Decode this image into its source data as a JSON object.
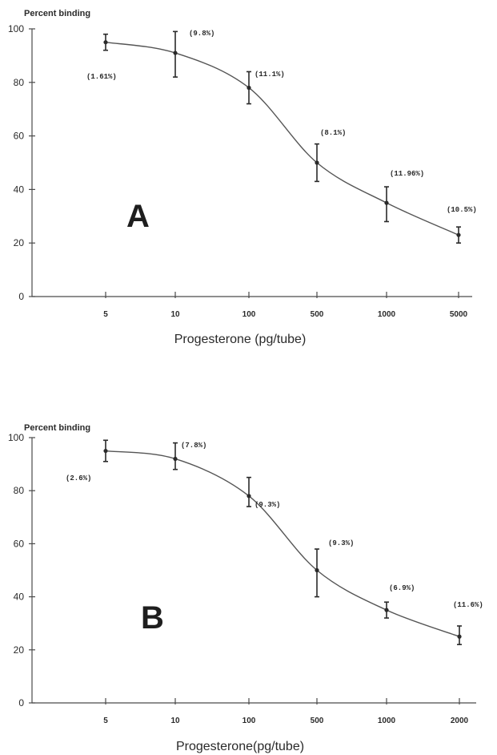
{
  "chart_data": [
    {
      "type": "line",
      "panel_label": "A",
      "ylabel": "Percent binding",
      "xlabel": "Progesterone (pg/tube)",
      "x_tick_labels": [
        "5",
        "10",
        "100",
        "500",
        "1000",
        "5000"
      ],
      "y_ticks": [
        0,
        20,
        40,
        60,
        80,
        100
      ],
      "ylim": [
        0,
        100
      ],
      "grid": false,
      "points": [
        {
          "x": "5",
          "y": 95,
          "err_low": 92,
          "err_high": 98,
          "label": "(1.61%)"
        },
        {
          "x": "10",
          "y": 91,
          "err_low": 82,
          "err_high": 99,
          "label": "(9.8%)"
        },
        {
          "x": "100",
          "y": 78,
          "err_low": 72,
          "err_high": 84,
          "label": "(11.1%)"
        },
        {
          "x": "500",
          "y": 50,
          "err_low": 43,
          "err_high": 57,
          "label": "(8.1%)"
        },
        {
          "x": "1000",
          "y": 35,
          "err_low": 28,
          "err_high": 41,
          "label": "(11.96%)"
        },
        {
          "x": "5000",
          "y": 23,
          "err_low": 20,
          "err_high": 26,
          "label": "(10.5%)"
        }
      ]
    },
    {
      "type": "line",
      "panel_label": "B",
      "ylabel": "Percent binding",
      "xlabel": "Progesterone(pg/tube)",
      "x_tick_labels": [
        "5",
        "10",
        "100",
        "500",
        "1000",
        "2000"
      ],
      "y_ticks": [
        0,
        20,
        40,
        60,
        80,
        100
      ],
      "ylim": [
        0,
        100
      ],
      "grid": false,
      "points": [
        {
          "x": "5",
          "y": 95,
          "err_low": 91,
          "err_high": 99,
          "label": "(2.6%)"
        },
        {
          "x": "10",
          "y": 92,
          "err_low": 88,
          "err_high": 98,
          "label": "(7.8%)"
        },
        {
          "x": "100",
          "y": 78,
          "err_low": 74,
          "err_high": 85,
          "label": "(9.3%)"
        },
        {
          "x": "500",
          "y": 50,
          "err_low": 40,
          "err_high": 58,
          "label": "(9.3%)"
        },
        {
          "x": "1000",
          "y": 35,
          "err_low": 32,
          "err_high": 38,
          "label": "(6.9%)"
        },
        {
          "x": "2000",
          "y": 25,
          "err_low": 22,
          "err_high": 29,
          "label": "(11.6%)"
        }
      ]
    }
  ]
}
